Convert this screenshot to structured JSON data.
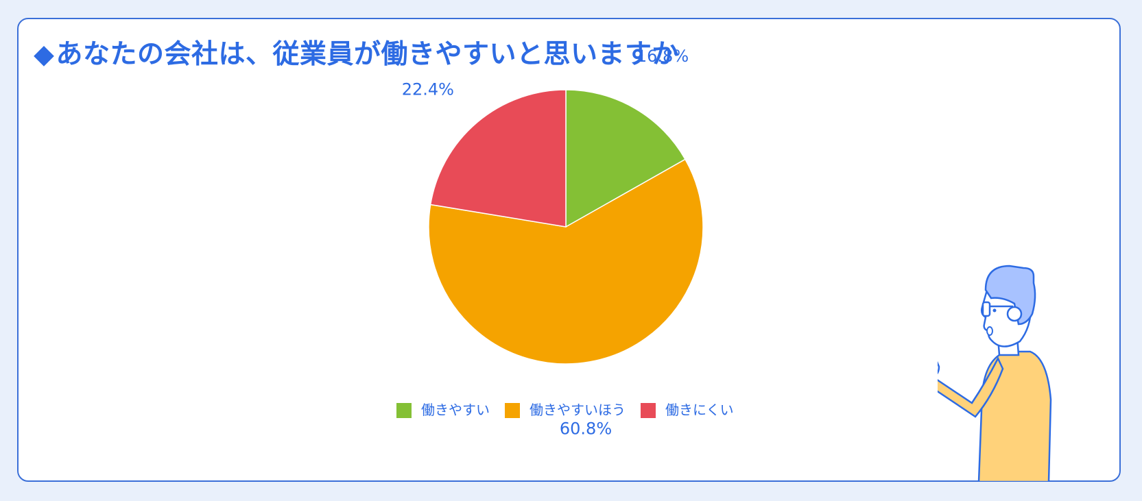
{
  "header": {
    "marker": "◆",
    "title": "あなたの会社は、従業員が働きやすいと思いますか"
  },
  "colors": {
    "background": "#e9f0fb",
    "card_border": "#3a6fd8",
    "title": "#2d6be3",
    "label_text": "#2d6be3"
  },
  "chart_data": {
    "type": "pie",
    "title": "",
    "start_angle": "top (12 o'clock), clockwise",
    "slices": [
      {
        "name": "働きやすい",
        "value": 16.8,
        "label": "16.8%",
        "color": "#84c035"
      },
      {
        "name": "働きやすいほう",
        "value": 60.8,
        "label": "60.8%",
        "color": "#f5a300"
      },
      {
        "name": "働きにくい",
        "value": 22.4,
        "label": "22.4%",
        "color": "#e84b57"
      }
    ],
    "legend": {
      "placement": "bottom",
      "entries": [
        "働きやすい",
        "働きやすいほう",
        "働きにくい"
      ]
    }
  },
  "illustration": {
    "icon": "person-pointing-icon"
  }
}
